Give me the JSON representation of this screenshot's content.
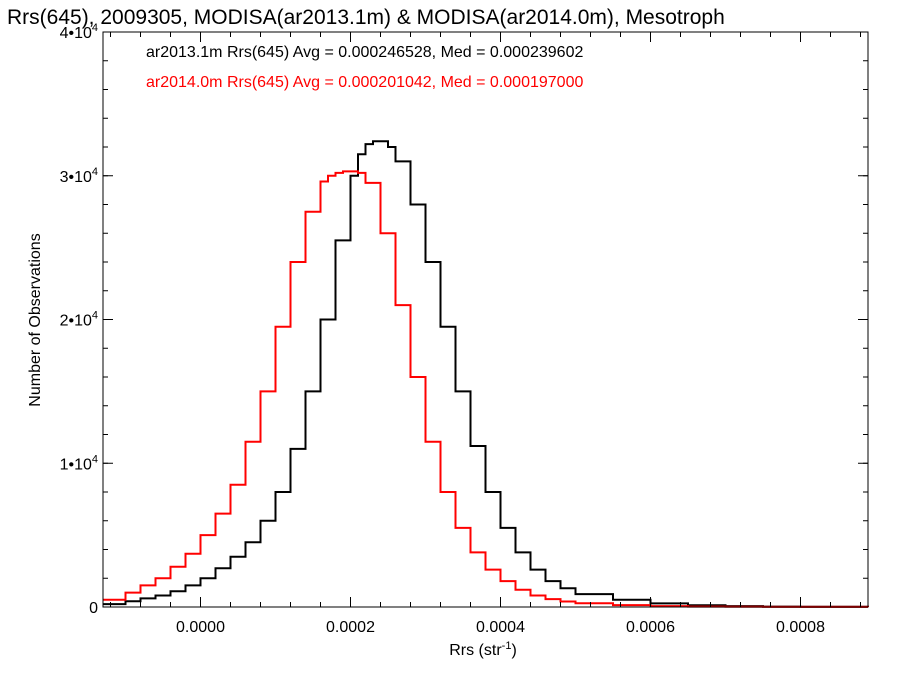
{
  "chart_data": {
    "type": "line",
    "title": "Rrs(645), 2009305, MODISA(ar2013.1m) & MODISA(ar2014.0m), Mesotroph",
    "xlabel": "Rrs (str",
    "xlabel_superscript": "-1",
    "xlabel_suffix": ")",
    "ylabel": "Number of Observations",
    "xlim": [
      -0.00013,
      0.00089
    ],
    "ylim": [
      0,
      40000
    ],
    "x_ticks": [
      {
        "value": 0.0,
        "label": "0.0000"
      },
      {
        "value": 0.0002,
        "label": "0.0002"
      },
      {
        "value": 0.0004,
        "label": "0.0004"
      },
      {
        "value": 0.0006,
        "label": "0.0006"
      },
      {
        "value": 0.0008,
        "label": "0.0008"
      }
    ],
    "y_ticks": [
      {
        "value": 0,
        "label": "0",
        "exp": ""
      },
      {
        "value": 10000,
        "label": "1•10",
        "exp": "4"
      },
      {
        "value": 20000,
        "label": "2•10",
        "exp": "4"
      },
      {
        "value": 30000,
        "label": "3•10",
        "exp": "4"
      },
      {
        "value": 40000,
        "label": "4•10",
        "exp": "4"
      }
    ],
    "grid": false,
    "legend_position": "top-left",
    "series": [
      {
        "name": "ar2013.1m Rrs(645) Avg = 0.000246528, Med = 0.000239602",
        "color": "#000000",
        "x": [
          -0.00013,
          -0.0001,
          -8e-05,
          -6e-05,
          -4e-05,
          -2e-05,
          0.0,
          2e-05,
          4e-05,
          6e-05,
          8e-05,
          0.0001,
          0.00012,
          0.00014,
          0.00016,
          0.00018,
          0.0002,
          0.00021,
          0.00022,
          0.00023,
          0.00024,
          0.00025,
          0.00026,
          0.00028,
          0.0003,
          0.00032,
          0.00034,
          0.00036,
          0.00038,
          0.0004,
          0.00042,
          0.00044,
          0.00046,
          0.00048,
          0.0005,
          0.00055,
          0.0006,
          0.00065,
          0.0007,
          0.00075,
          0.0008,
          0.00089
        ],
        "y": [
          200,
          400,
          600,
          800,
          1100,
          1500,
          2000,
          2700,
          3500,
          4500,
          6000,
          8000,
          11000,
          15000,
          20000,
          25500,
          30000,
          31500,
          32200,
          32400,
          32400,
          32000,
          31000,
          28000,
          24000,
          19500,
          15000,
          11200,
          8000,
          5500,
          3800,
          2600,
          1800,
          1300,
          900,
          500,
          250,
          120,
          60,
          30,
          15,
          5
        ]
      },
      {
        "name": "ar2014.0m Rrs(645) Avg = 0.000201042, Med = 0.000197000",
        "color": "#ff0000",
        "x": [
          -0.00013,
          -0.0001,
          -8e-05,
          -6e-05,
          -4e-05,
          -2e-05,
          0.0,
          2e-05,
          4e-05,
          6e-05,
          8e-05,
          0.0001,
          0.00012,
          0.00014,
          0.00016,
          0.00017,
          0.00018,
          0.00019,
          0.0002,
          0.00021,
          0.00022,
          0.00024,
          0.00026,
          0.00028,
          0.0003,
          0.00032,
          0.00034,
          0.00036,
          0.00038,
          0.0004,
          0.00042,
          0.00044,
          0.00046,
          0.00048,
          0.0005,
          0.00055,
          0.0006,
          0.00065,
          0.0007,
          0.00075,
          0.0008,
          0.00089
        ],
        "y": [
          500,
          1000,
          1500,
          2000,
          2800,
          3700,
          5000,
          6500,
          8500,
          11500,
          15000,
          19500,
          24000,
          27500,
          29600,
          30000,
          30200,
          30300,
          30300,
          30200,
          29500,
          26000,
          21000,
          16000,
          11500,
          8000,
          5500,
          3800,
          2600,
          1800,
          1200,
          800,
          550,
          380,
          260,
          130,
          60,
          30,
          15,
          8,
          4,
          2
        ]
      }
    ]
  }
}
